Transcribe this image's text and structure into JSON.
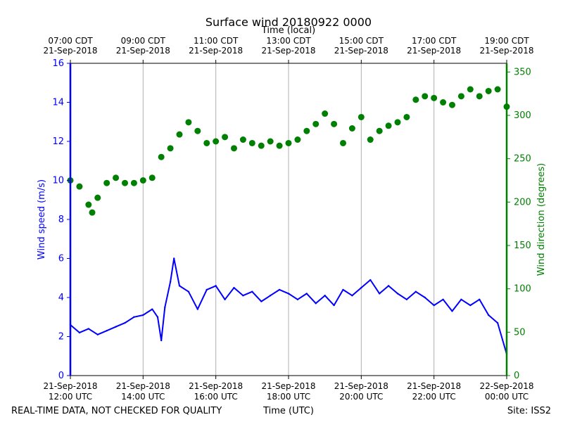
{
  "chart_data": {
    "type": "line",
    "title": "Surface wind 20180922 0000",
    "top_axis_label": "Time (local)",
    "xlabel": "Time (UTC)",
    "ylabel_left": "Wind speed (m/s)",
    "ylabel_right": "Wind direction (degrees)",
    "footer_left": "REAL-TIME DATA, NOT CHECKED FOR QUALITY",
    "footer_right": "Site: ISS2",
    "x_range_hours_utc": [
      12,
      24
    ],
    "ylim_left": [
      0,
      16
    ],
    "ylim_right": [
      0,
      360
    ],
    "left_ticks": [
      "0",
      "2",
      "4",
      "6",
      "8",
      "10",
      "12",
      "14",
      "16"
    ],
    "right_ticks": [
      "0",
      "50",
      "100",
      "150",
      "200",
      "250",
      "300",
      "350"
    ],
    "bottom_ticks": [
      {
        "hour": 12,
        "line1": "21-Sep-2018",
        "line2": "12:00 UTC"
      },
      {
        "hour": 14,
        "line1": "21-Sep-2018",
        "line2": "14:00 UTC"
      },
      {
        "hour": 16,
        "line1": "21-Sep-2018",
        "line2": "16:00 UTC"
      },
      {
        "hour": 18,
        "line1": "21-Sep-2018",
        "line2": "18:00 UTC"
      },
      {
        "hour": 20,
        "line1": "21-Sep-2018",
        "line2": "20:00 UTC"
      },
      {
        "hour": 22,
        "line1": "21-Sep-2018",
        "line2": "22:00 UTC"
      },
      {
        "hour": 24,
        "line1": "22-Sep-2018",
        "line2": "00:00 UTC"
      }
    ],
    "top_ticks": [
      {
        "hour": 12,
        "line1": "07:00 CDT",
        "line2": "21-Sep-2018"
      },
      {
        "hour": 14,
        "line1": "09:00 CDT",
        "line2": "21-Sep-2018"
      },
      {
        "hour": 16,
        "line1": "11:00 CDT",
        "line2": "21-Sep-2018"
      },
      {
        "hour": 18,
        "line1": "13:00 CDT",
        "line2": "21-Sep-2018"
      },
      {
        "hour": 20,
        "line1": "15:00 CDT",
        "line2": "21-Sep-2018"
      },
      {
        "hour": 22,
        "line1": "17:00 CDT",
        "line2": "21-Sep-2018"
      },
      {
        "hour": 24,
        "line1": "19:00 CDT",
        "line2": "21-Sep-2018"
      }
    ],
    "series": [
      {
        "name": "Wind speed (m/s)",
        "axis": "left",
        "style": "line",
        "color": "#0000ff",
        "x_hours": [
          12.0,
          12.25,
          12.5,
          12.75,
          13.0,
          13.25,
          13.5,
          13.75,
          14.0,
          14.25,
          14.4,
          14.5,
          14.6,
          14.75,
          14.85,
          15.0,
          15.25,
          15.5,
          15.75,
          16.0,
          16.25,
          16.5,
          16.75,
          17.0,
          17.25,
          17.5,
          17.75,
          18.0,
          18.25,
          18.5,
          18.75,
          19.0,
          19.25,
          19.5,
          19.75,
          20.0,
          20.25,
          20.5,
          20.75,
          21.0,
          21.25,
          21.5,
          21.75,
          22.0,
          22.25,
          22.5,
          22.75,
          23.0,
          23.25,
          23.5,
          23.75,
          24.0
        ],
        "values": [
          2.6,
          2.2,
          2.4,
          2.1,
          2.3,
          2.5,
          2.7,
          3.0,
          3.1,
          3.4,
          3.0,
          1.8,
          3.5,
          4.8,
          6.0,
          4.6,
          4.3,
          3.4,
          4.4,
          4.6,
          3.9,
          4.5,
          4.1,
          4.3,
          3.8,
          4.1,
          4.4,
          4.2,
          3.9,
          4.2,
          3.7,
          4.1,
          3.6,
          4.4,
          4.1,
          4.5,
          4.9,
          4.2,
          4.6,
          4.2,
          3.9,
          4.3,
          4.0,
          3.6,
          3.9,
          3.3,
          3.9,
          3.6,
          3.9,
          3.1,
          2.7,
          1.1
        ]
      },
      {
        "name": "Wind direction (degrees)",
        "axis": "right",
        "style": "dots",
        "color": "#008000",
        "x_hours": [
          12.0,
          12.25,
          12.5,
          12.6,
          12.75,
          13.0,
          13.25,
          13.5,
          13.75,
          14.0,
          14.25,
          14.5,
          14.75,
          15.0,
          15.25,
          15.5,
          15.75,
          16.0,
          16.25,
          16.5,
          16.75,
          17.0,
          17.25,
          17.5,
          17.75,
          18.0,
          18.25,
          18.5,
          18.75,
          19.0,
          19.25,
          19.5,
          19.75,
          20.0,
          20.25,
          20.5,
          20.75,
          21.0,
          21.25,
          21.5,
          21.75,
          22.0,
          22.25,
          22.5,
          22.75,
          23.0,
          23.25,
          23.5,
          23.75,
          24.0
        ],
        "values": [
          225,
          218,
          197,
          188,
          205,
          222,
          228,
          222,
          222,
          225,
          228,
          252,
          262,
          278,
          292,
          282,
          268,
          270,
          275,
          262,
          272,
          268,
          265,
          270,
          265,
          268,
          272,
          282,
          290,
          302,
          290,
          268,
          285,
          298,
          272,
          282,
          288,
          292,
          298,
          318,
          322,
          320,
          315,
          312,
          322,
          330,
          322,
          328,
          330,
          310
        ]
      }
    ]
  }
}
